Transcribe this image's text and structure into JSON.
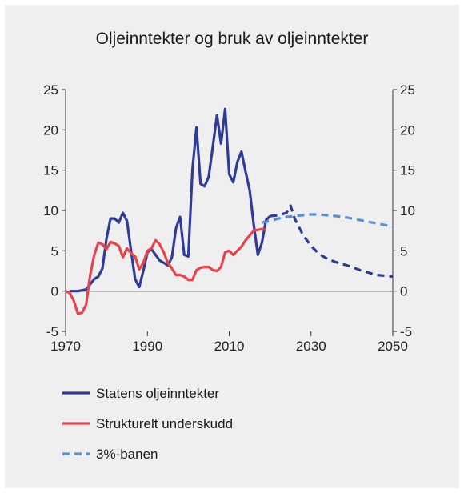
{
  "chart_data": {
    "type": "line",
    "title": "Oljeinntekter og bruk av oljeinntekter",
    "xlim": [
      1970,
      2050
    ],
    "ylim": [
      -5,
      25
    ],
    "x_ticks": [
      1970,
      1990,
      2010,
      2030,
      2050
    ],
    "y_ticks": [
      25,
      20,
      15,
      10,
      5,
      0,
      -5
    ],
    "grid": false,
    "legend_position": "bottom",
    "series": [
      {
        "name": "Statens oljeinntekter",
        "color": "#2f3b98",
        "dash": "solid",
        "points": [
          [
            1971,
            0.0
          ],
          [
            1973,
            0.0
          ],
          [
            1975,
            0.2
          ],
          [
            1977,
            1.5
          ],
          [
            1978,
            1.8
          ],
          [
            1979,
            2.8
          ],
          [
            1980,
            6.5
          ],
          [
            1981,
            9.0
          ],
          [
            1982,
            9.0
          ],
          [
            1983,
            8.5
          ],
          [
            1984,
            9.7
          ],
          [
            1985,
            8.7
          ],
          [
            1986,
            5.0
          ],
          [
            1987,
            1.5
          ],
          [
            1988,
            0.5
          ],
          [
            1989,
            2.5
          ],
          [
            1990,
            4.8
          ],
          [
            1991,
            5.2
          ],
          [
            1992,
            4.5
          ],
          [
            1993,
            3.8
          ],
          [
            1994,
            3.5
          ],
          [
            1995,
            3.2
          ],
          [
            1996,
            4.2
          ],
          [
            1997,
            7.8
          ],
          [
            1998,
            9.2
          ],
          [
            1999,
            4.5
          ],
          [
            2000,
            4.3
          ],
          [
            2001,
            15.0
          ],
          [
            2002,
            20.3
          ],
          [
            2003,
            13.3
          ],
          [
            2004,
            13.0
          ],
          [
            2005,
            14.2
          ],
          [
            2006,
            18.0
          ],
          [
            2007,
            21.8
          ],
          [
            2008,
            18.3
          ],
          [
            2009,
            22.6
          ],
          [
            2010,
            14.5
          ],
          [
            2011,
            13.5
          ],
          [
            2012,
            16.0
          ],
          [
            2013,
            17.3
          ],
          [
            2014,
            14.8
          ],
          [
            2015,
            12.5
          ],
          [
            2016,
            8.2
          ],
          [
            2017,
            4.5
          ],
          [
            2018,
            6.0
          ],
          [
            2019,
            8.8
          ],
          [
            2020,
            9.3
          ]
        ]
      },
      {
        "name": "",
        "color": "#2f3b98",
        "dash": "dashed",
        "points": [
          [
            2020,
            9.3
          ],
          [
            2022,
            9.4
          ],
          [
            2024,
            9.7
          ],
          [
            2025,
            10.6
          ],
          [
            2026,
            9.0
          ],
          [
            2028,
            7.0
          ],
          [
            2030,
            5.6
          ],
          [
            2032,
            4.6
          ],
          [
            2034,
            4.0
          ],
          [
            2036,
            3.6
          ],
          [
            2038,
            3.3
          ],
          [
            2040,
            3.0
          ],
          [
            2042,
            2.6
          ],
          [
            2044,
            2.3
          ],
          [
            2046,
            2.0
          ],
          [
            2048,
            1.9
          ],
          [
            2050,
            1.8
          ]
        ]
      },
      {
        "name": "Strukturelt underskudd",
        "color": "#e8434a",
        "dash": "solid",
        "points": [
          [
            1970,
            0.0
          ],
          [
            1971,
            -0.2
          ],
          [
            1972,
            -1.2
          ],
          [
            1973,
            -2.8
          ],
          [
            1974,
            -2.7
          ],
          [
            1975,
            -1.7
          ],
          [
            1976,
            2.0
          ],
          [
            1977,
            4.5
          ],
          [
            1978,
            6.0
          ],
          [
            1979,
            5.8
          ],
          [
            1980,
            5.2
          ],
          [
            1981,
            6.1
          ],
          [
            1982,
            5.9
          ],
          [
            1983,
            5.6
          ],
          [
            1984,
            4.2
          ],
          [
            1985,
            5.3
          ],
          [
            1986,
            4.7
          ],
          [
            1987,
            4.3
          ],
          [
            1988,
            2.7
          ],
          [
            1989,
            3.5
          ],
          [
            1990,
            5.0
          ],
          [
            1991,
            5.3
          ],
          [
            1992,
            6.3
          ],
          [
            1993,
            5.8
          ],
          [
            1994,
            4.8
          ],
          [
            1995,
            3.5
          ],
          [
            1996,
            2.8
          ],
          [
            1997,
            2.0
          ],
          [
            1998,
            2.0
          ],
          [
            1999,
            1.8
          ],
          [
            2000,
            1.4
          ],
          [
            2001,
            1.4
          ],
          [
            2002,
            2.6
          ],
          [
            2003,
            2.9
          ],
          [
            2004,
            3.0
          ],
          [
            2005,
            3.0
          ],
          [
            2006,
            2.6
          ],
          [
            2007,
            2.5
          ],
          [
            2008,
            3.0
          ],
          [
            2009,
            4.8
          ],
          [
            2010,
            5.0
          ],
          [
            2011,
            4.5
          ],
          [
            2012,
            5.0
          ],
          [
            2013,
            5.5
          ],
          [
            2014,
            6.3
          ],
          [
            2015,
            6.9
          ],
          [
            2016,
            7.5
          ],
          [
            2017,
            7.6
          ],
          [
            2018,
            7.7
          ],
          [
            2019,
            7.6
          ]
        ]
      },
      {
        "name": "3%-banen",
        "color": "#5b8ed6",
        "dash": "dashed",
        "points": [
          [
            2018,
            8.5
          ],
          [
            2020,
            8.7
          ],
          [
            2022,
            9.0
          ],
          [
            2024,
            9.2
          ],
          [
            2026,
            9.3
          ],
          [
            2028,
            9.4
          ],
          [
            2030,
            9.5
          ],
          [
            2032,
            9.5
          ],
          [
            2034,
            9.4
          ],
          [
            2036,
            9.3
          ],
          [
            2038,
            9.2
          ],
          [
            2040,
            9.0
          ],
          [
            2042,
            8.8
          ],
          [
            2044,
            8.6
          ],
          [
            2046,
            8.4
          ],
          [
            2048,
            8.2
          ],
          [
            2050,
            8.0
          ]
        ]
      }
    ]
  }
}
